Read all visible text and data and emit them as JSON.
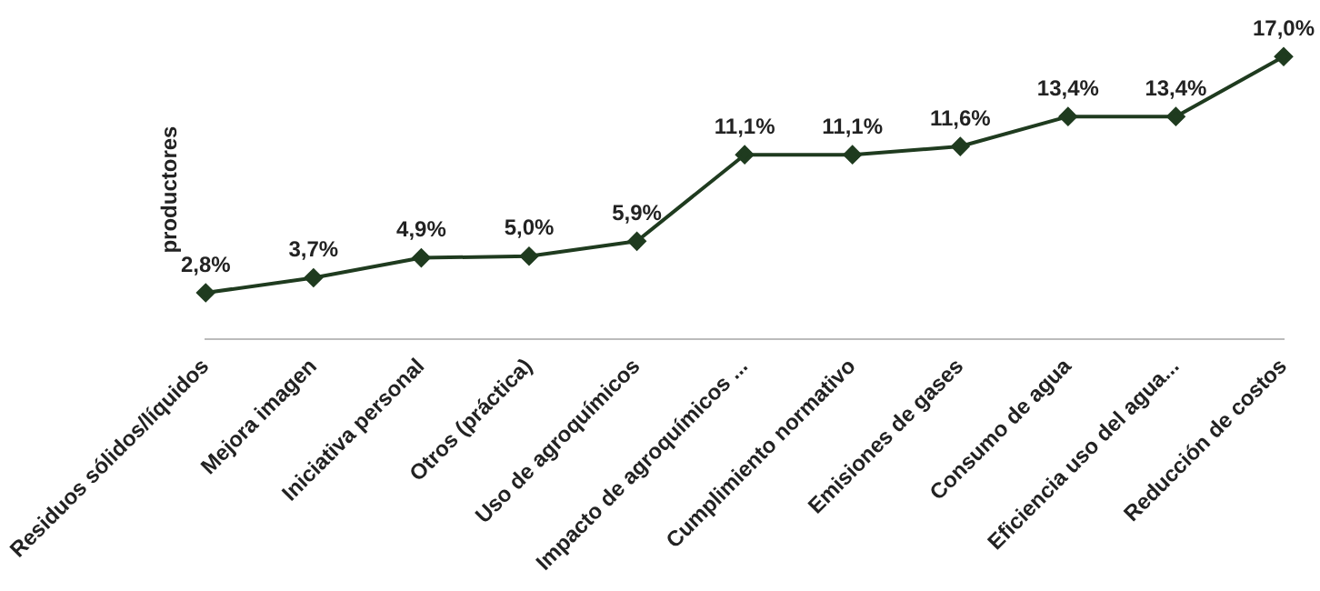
{
  "chart_data": {
    "type": "line",
    "ylabel": "productores",
    "categories": [
      "Residuos sólidos/líquidos",
      "Mejora imagen",
      "Iniciativa personal",
      "Otros (práctica)",
      "Uso de agroquímicos",
      "Impacto de agroquímicos ...",
      "Cumplimiento normativo",
      "Emisiones de gases",
      "Consumo de agua",
      "Eficiencia uso del agua...",
      "Reducción de costos"
    ],
    "series": [
      {
        "color": "#1f3b1f",
        "values": [
          2.8,
          3.7,
          4.9,
          5.0,
          5.9,
          11.1,
          11.1,
          11.6,
          13.4,
          13.4,
          17.0
        ],
        "value_labels": [
          "2,8%",
          "3,7%",
          "4,9%",
          "5,0%",
          "5,9%",
          "11,1%",
          "11,1%",
          "11,6%",
          "13,4%",
          "13,4%",
          "17,0%"
        ]
      }
    ],
    "marker": "diamond",
    "line_style": "solid",
    "grid": false,
    "legend": false
  }
}
